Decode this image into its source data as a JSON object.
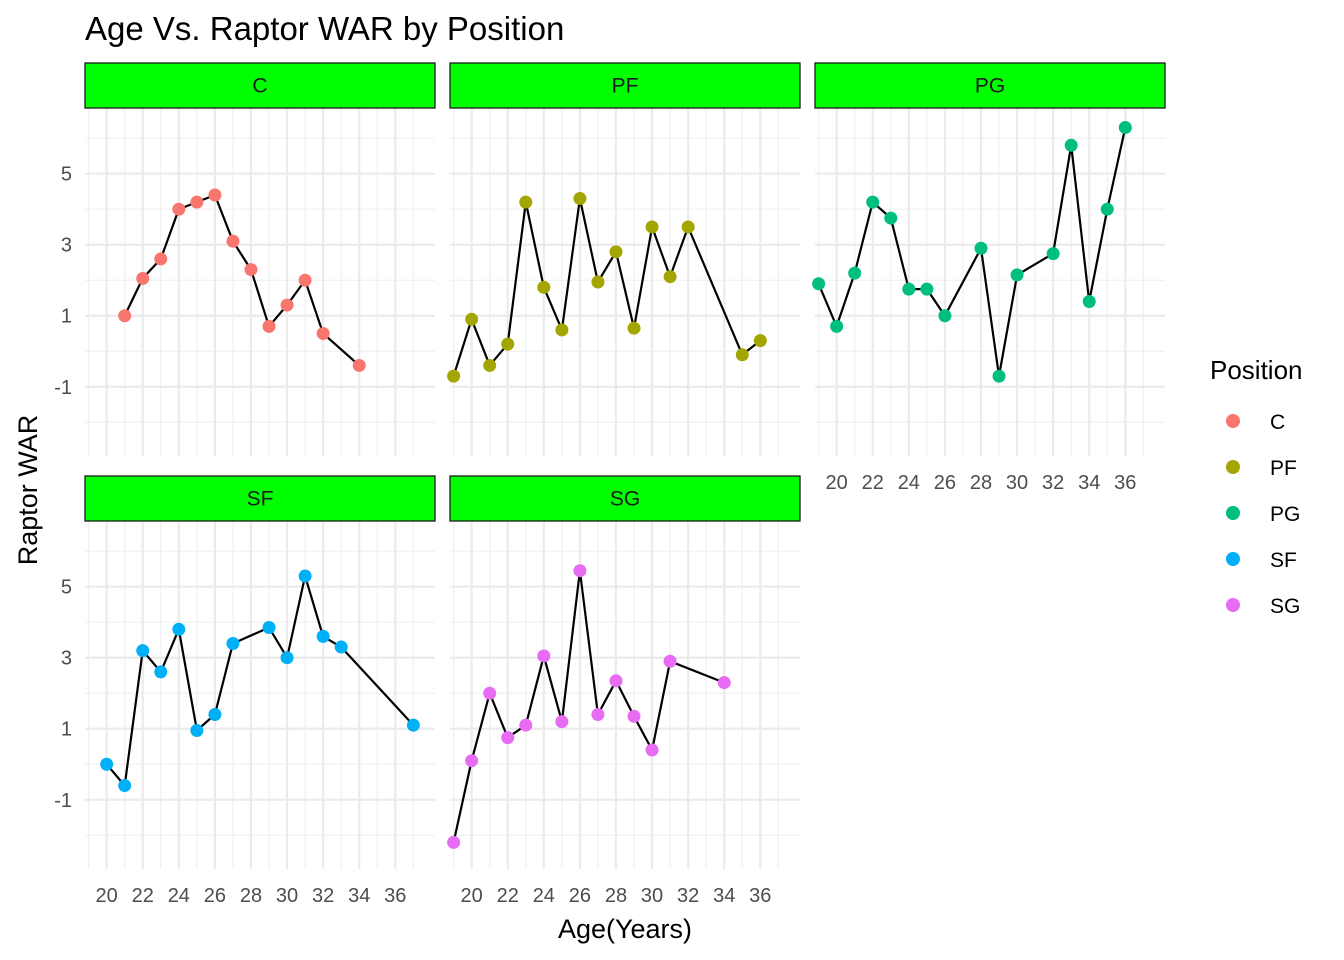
{
  "chart_data": {
    "type": "line",
    "title": "Age Vs. Raptor WAR by Position",
    "xlabel": "Age(Years)",
    "ylabel": "Raptor WAR",
    "xlim": [
      18.8,
      38.2
    ],
    "ylim": [
      -2.95,
      6.85
    ],
    "x_ticks": [
      20,
      22,
      24,
      26,
      28,
      30,
      32,
      34,
      36
    ],
    "y_ticks": [
      -1,
      1,
      3,
      5
    ],
    "grid": true,
    "facet_strip_color": "#00ff00",
    "legend": {
      "title": "Position",
      "placement": "right"
    },
    "series": [
      {
        "name": "C",
        "color": "#f8766d",
        "x": [
          21,
          22,
          23,
          24,
          25,
          26,
          27,
          28,
          29,
          30,
          31,
          32,
          34
        ],
        "y": [
          1.0,
          2.05,
          2.6,
          4.0,
          4.2,
          4.4,
          3.1,
          2.3,
          0.7,
          1.3,
          2.0,
          0.5,
          -0.4
        ]
      },
      {
        "name": "PF",
        "color": "#a3a500",
        "x": [
          19,
          20,
          21,
          22,
          23,
          24,
          25,
          26,
          27,
          28,
          29,
          30,
          31,
          32,
          35,
          36
        ],
        "y": [
          -0.7,
          0.9,
          -0.4,
          0.2,
          4.2,
          1.8,
          0.6,
          4.3,
          1.95,
          2.8,
          0.65,
          3.5,
          2.1,
          3.5,
          -0.1,
          0.3
        ]
      },
      {
        "name": "PG",
        "color": "#00bf7d",
        "x": [
          19,
          20,
          21,
          22,
          23,
          24,
          25,
          26,
          28,
          29,
          30,
          32,
          33,
          34,
          35,
          36
        ],
        "y": [
          1.9,
          0.7,
          2.2,
          4.2,
          3.75,
          1.75,
          1.75,
          1.0,
          2.9,
          -0.7,
          2.15,
          2.75,
          5.8,
          1.4,
          4.0,
          6.3
        ]
      },
      {
        "name": "SF",
        "color": "#00b0f6",
        "x": [
          20,
          21,
          22,
          23,
          24,
          25,
          26,
          27,
          29,
          30,
          31,
          32,
          33,
          37
        ],
        "y": [
          0.0,
          -0.6,
          3.2,
          2.6,
          3.8,
          0.95,
          1.4,
          3.4,
          3.85,
          3.0,
          5.3,
          3.6,
          3.3,
          1.1
        ]
      },
      {
        "name": "SG",
        "color": "#e76bf3",
        "x": [
          19,
          20,
          21,
          22,
          23,
          24,
          25,
          26,
          27,
          28,
          29,
          30,
          31,
          34
        ],
        "y": [
          -2.2,
          0.1,
          2.0,
          0.75,
          1.1,
          3.05,
          1.2,
          5.45,
          1.4,
          2.35,
          1.35,
          0.4,
          2.9,
          2.3
        ]
      }
    ]
  }
}
